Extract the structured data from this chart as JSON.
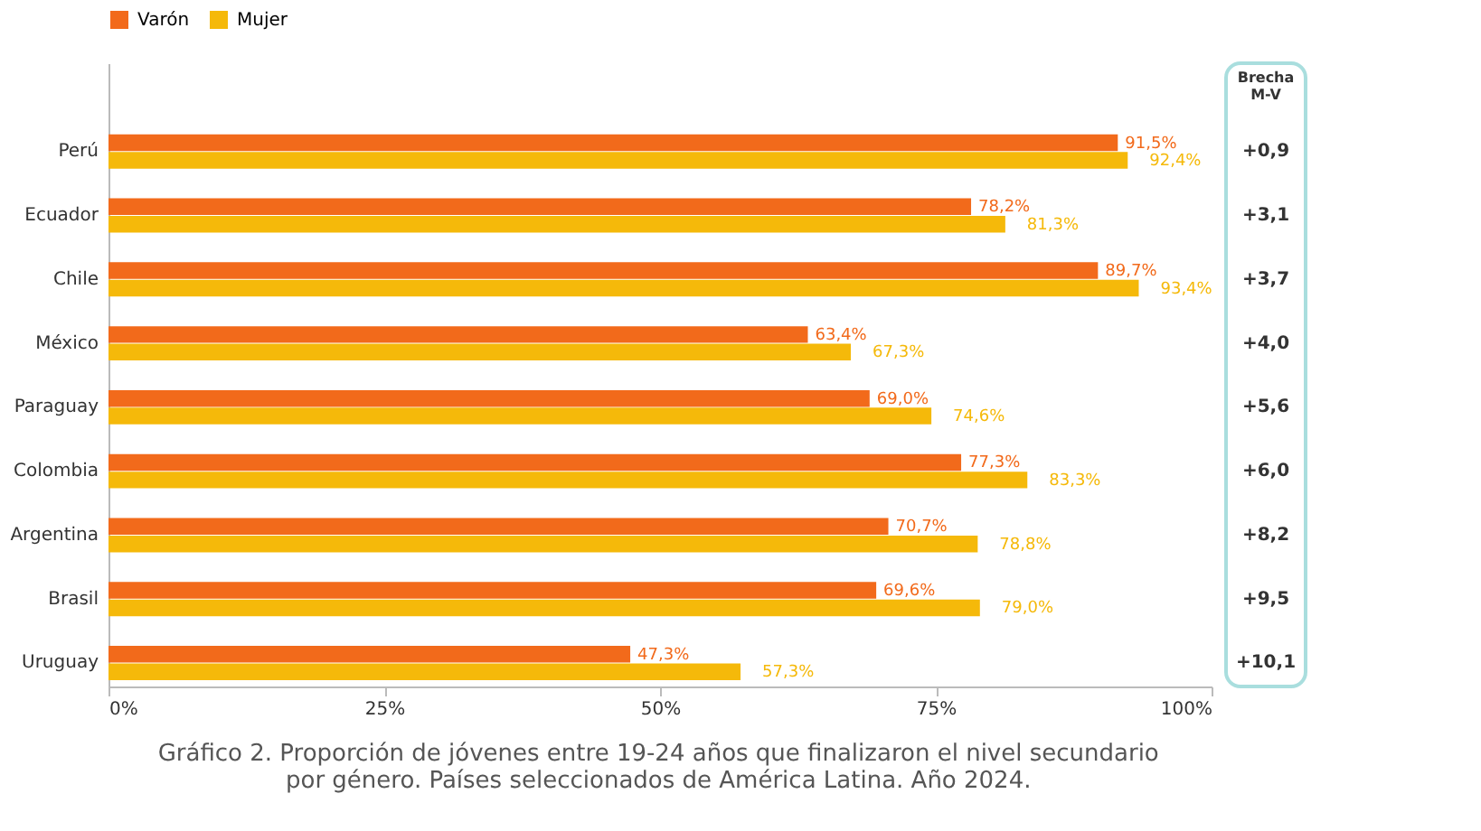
{
  "chart_data": {
    "type": "bar",
    "orientation": "horizontal",
    "categories": [
      "Perú",
      "Ecuador",
      "Chile",
      "México",
      "Paraguay",
      "Colombia",
      "Argentina",
      "Brasil",
      "Uruguay"
    ],
    "series": [
      {
        "name": "Varón",
        "color": "#f26a1b",
        "values": [
          91.5,
          78.2,
          89.7,
          63.4,
          69.0,
          77.3,
          70.7,
          69.6,
          47.3
        ],
        "value_labels": [
          "91,5%",
          "78,2%",
          "89,7%",
          "63,4%",
          "69,0%",
          "77,3%",
          "70,7%",
          "69,6%",
          "47,3%"
        ]
      },
      {
        "name": "Mujer",
        "color": "#f5b90a",
        "values": [
          92.4,
          81.3,
          93.4,
          67.3,
          74.6,
          83.3,
          78.8,
          79.0,
          57.3
        ],
        "value_labels": [
          "92,4%",
          "81,3%",
          "93,4%",
          "67,3%",
          "74,6%",
          "83,3%",
          "78,8%",
          "79,0%",
          "57,3%"
        ]
      }
    ],
    "xlim": [
      0,
      100
    ],
    "xticks": [
      {
        "value": 0,
        "label": "0%"
      },
      {
        "value": 25,
        "label": "25%"
      },
      {
        "value": 50,
        "label": "50%"
      },
      {
        "value": 75,
        "label": "75%"
      },
      {
        "value": 100,
        "label": "100%"
      }
    ],
    "grid": false,
    "legend": "top",
    "annotations": [
      "Brecha M-V",
      "+0,9",
      "+3,1",
      "+3,7",
      "+4,0",
      "+5,6",
      "+6,0",
      "+8,2",
      "+9,5",
      "+10,1",
      "Gráfico 2. Proporción de jóvenes entre 19-24 años que finalizaron el nivel secundario por género. Países seleccionados de América Latina. Año 2024."
    ]
  }
}
